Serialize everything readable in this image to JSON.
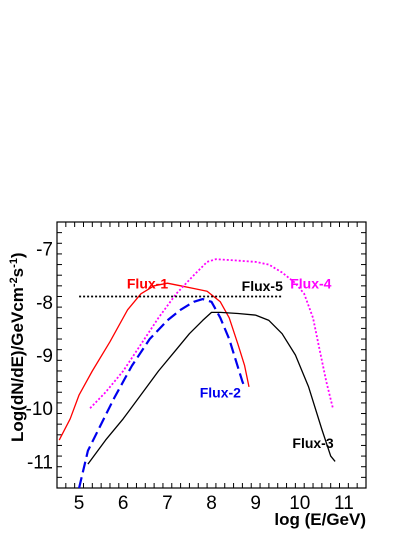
{
  "chart_data": {
    "type": "line",
    "title": "",
    "xlabel": "log (E/GeV)",
    "ylabel": "Log(dN/dE)/GeVcm^{-2}s^{-1}",
    "xlim": [
      4.5,
      11.5
    ],
    "ylim": [
      -11.5,
      -6.5
    ],
    "x_ticks": [
      "5",
      "6",
      "7",
      "8",
      "9",
      "10",
      "11"
    ],
    "y_ticks": [
      "-7",
      "-8",
      "-9",
      "-10",
      "-11"
    ],
    "grid": false,
    "legend": "none",
    "series": [
      {
        "name": "Flux-1",
        "color": "#ff0000",
        "style": "solid",
        "label_at": [
          6.55,
          -7.75
        ],
        "points": [
          [
            4.55,
            -10.6
          ],
          [
            4.8,
            -10.2
          ],
          [
            5.0,
            -9.75
          ],
          [
            5.3,
            -9.3
          ],
          [
            5.7,
            -8.75
          ],
          [
            6.1,
            -8.15
          ],
          [
            6.4,
            -7.85
          ],
          [
            6.7,
            -7.7
          ],
          [
            7.0,
            -7.65
          ],
          [
            7.3,
            -7.7
          ],
          [
            7.6,
            -7.75
          ],
          [
            7.9,
            -7.8
          ],
          [
            8.2,
            -8.0
          ],
          [
            8.4,
            -8.3
          ],
          [
            8.6,
            -8.8
          ],
          [
            8.75,
            -9.2
          ],
          [
            8.85,
            -9.6
          ]
        ]
      },
      {
        "name": "Flux-2",
        "color": "#0000ee",
        "style": "dashed",
        "label_at": [
          8.2,
          -9.8
        ],
        "points": [
          [
            5.0,
            -11.5
          ],
          [
            5.2,
            -10.8
          ],
          [
            5.5,
            -10.3
          ],
          [
            5.8,
            -9.8
          ],
          [
            6.2,
            -9.2
          ],
          [
            6.6,
            -8.7
          ],
          [
            7.0,
            -8.35
          ],
          [
            7.3,
            -8.15
          ],
          [
            7.6,
            -8.0
          ],
          [
            7.8,
            -7.95
          ],
          [
            8.0,
            -8.0
          ],
          [
            8.2,
            -8.3
          ],
          [
            8.4,
            -8.7
          ],
          [
            8.55,
            -9.1
          ],
          [
            8.7,
            -9.5
          ],
          [
            8.75,
            -9.6
          ]
        ]
      },
      {
        "name": "Flux-3",
        "color": "#000000",
        "style": "solid",
        "label_at": [
          10.3,
          -10.75
        ],
        "points": [
          [
            5.2,
            -11.05
          ],
          [
            5.6,
            -10.6
          ],
          [
            6.0,
            -10.2
          ],
          [
            6.4,
            -9.75
          ],
          [
            6.8,
            -9.3
          ],
          [
            7.2,
            -8.9
          ],
          [
            7.5,
            -8.6
          ],
          [
            7.8,
            -8.35
          ],
          [
            8.0,
            -8.2
          ],
          [
            8.2,
            -8.2
          ],
          [
            8.6,
            -8.22
          ],
          [
            9.0,
            -8.25
          ],
          [
            9.3,
            -8.35
          ],
          [
            9.6,
            -8.6
          ],
          [
            9.9,
            -9.0
          ],
          [
            10.2,
            -9.6
          ],
          [
            10.5,
            -10.4
          ],
          [
            10.7,
            -10.9
          ],
          [
            10.8,
            -11.0
          ]
        ]
      },
      {
        "name": "Flux-4",
        "color": "#ff00ff",
        "style": "dotted",
        "label_at": [
          10.25,
          -7.75
        ],
        "points": [
          [
            5.25,
            -10.0
          ],
          [
            5.6,
            -9.7
          ],
          [
            6.0,
            -9.3
          ],
          [
            6.4,
            -8.8
          ],
          [
            6.8,
            -8.3
          ],
          [
            7.2,
            -7.85
          ],
          [
            7.6,
            -7.5
          ],
          [
            7.9,
            -7.25
          ],
          [
            8.1,
            -7.2
          ],
          [
            8.5,
            -7.22
          ],
          [
            9.0,
            -7.25
          ],
          [
            9.3,
            -7.3
          ],
          [
            9.6,
            -7.45
          ],
          [
            9.9,
            -7.65
          ],
          [
            10.1,
            -7.85
          ],
          [
            10.3,
            -8.3
          ],
          [
            10.45,
            -8.9
          ],
          [
            10.6,
            -9.5
          ],
          [
            10.75,
            -10.0
          ]
        ]
      },
      {
        "name": "Flux-5",
        "color": "#000000",
        "style": "dotted-flat",
        "label_at": [
          9.15,
          -7.8
        ],
        "points": [
          [
            5.0,
            -7.9
          ],
          [
            9.6,
            -7.9
          ]
        ]
      }
    ]
  }
}
